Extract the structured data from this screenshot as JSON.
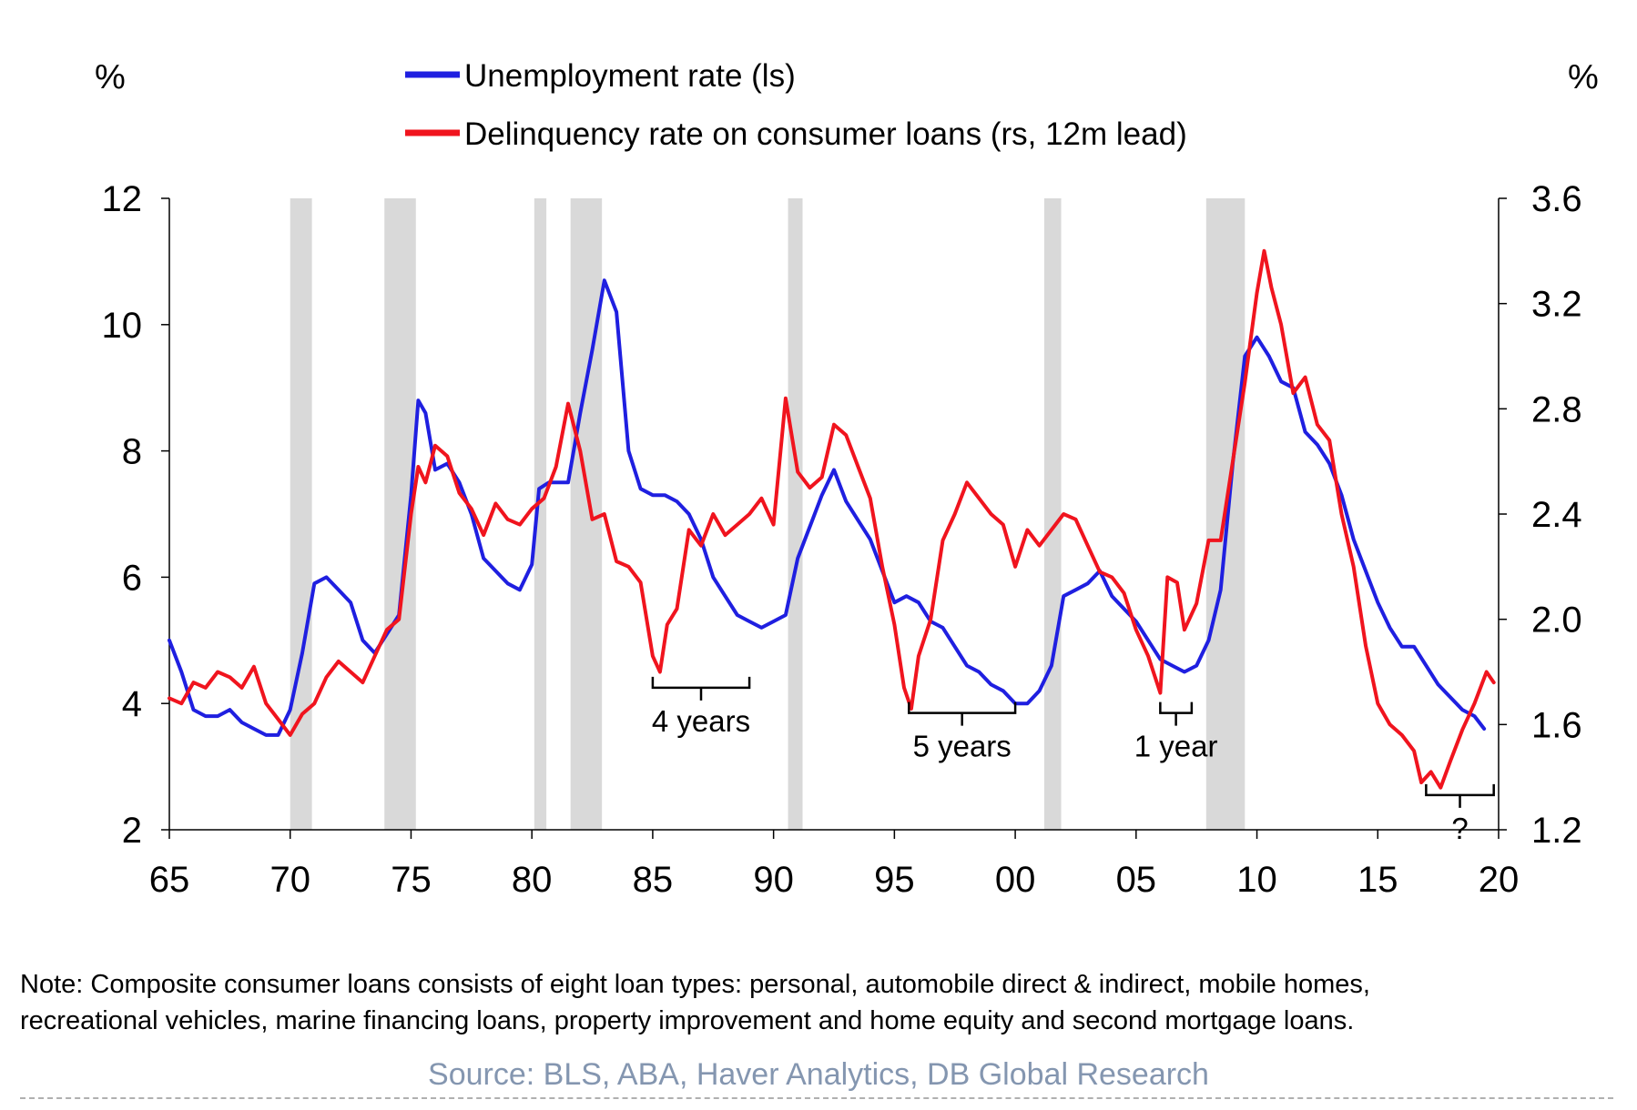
{
  "left_unit": "%",
  "right_unit": "%",
  "note_lines": [
    "Note: Composite consumer loans consists of eight loan types: personal, automobile direct & indirect, mobile homes,",
    "recreational vehicles, marine financing loans, property improvement and home equity and second mortgage loans."
  ],
  "source": "Source: BLS, ABA, Haver Analytics, DB Global Research",
  "chart_data": {
    "type": "line",
    "title": "",
    "xlabel": "",
    "ylabel": "%",
    "y2label": "%",
    "x_range": [
      1965,
      2020
    ],
    "x_ticks": [
      {
        "value": 1965,
        "label": "65"
      },
      {
        "value": 1970,
        "label": "70"
      },
      {
        "value": 1975,
        "label": "75"
      },
      {
        "value": 1980,
        "label": "80"
      },
      {
        "value": 1985,
        "label": "85"
      },
      {
        "value": 1990,
        "label": "90"
      },
      {
        "value": 1995,
        "label": "95"
      },
      {
        "value": 2000,
        "label": "00"
      },
      {
        "value": 2005,
        "label": "05"
      },
      {
        "value": 2010,
        "label": "10"
      },
      {
        "value": 2015,
        "label": "15"
      },
      {
        "value": 2020,
        "label": "20"
      }
    ],
    "ylim": [
      2,
      12
    ],
    "y_ticks": [
      "2",
      "4",
      "6",
      "8",
      "10",
      "12"
    ],
    "y2lim": [
      1.2,
      3.6
    ],
    "y2_ticks": [
      "1.2",
      "1.6",
      "2.0",
      "2.4",
      "2.8",
      "3.2",
      "3.6"
    ],
    "legend_position": "top-center",
    "recessions": [
      [
        1970.0,
        1970.9
      ],
      [
        1973.9,
        1975.2
      ],
      [
        1980.1,
        1980.6
      ],
      [
        1981.6,
        1982.9
      ],
      [
        1990.6,
        1991.2
      ],
      [
        2001.2,
        2001.9
      ],
      [
        2007.9,
        2009.5
      ]
    ],
    "series": [
      {
        "name": "Unemployment rate (ls)",
        "axis": "left",
        "color": "#1f1fe0",
        "points": [
          [
            1965.0,
            5.0
          ],
          [
            1965.5,
            4.5
          ],
          [
            1966.0,
            3.9
          ],
          [
            1966.5,
            3.8
          ],
          [
            1967.0,
            3.8
          ],
          [
            1967.5,
            3.9
          ],
          [
            1968.0,
            3.7
          ],
          [
            1968.5,
            3.6
          ],
          [
            1969.0,
            3.5
          ],
          [
            1969.5,
            3.5
          ],
          [
            1970.0,
            3.9
          ],
          [
            1970.5,
            4.8
          ],
          [
            1971.0,
            5.9
          ],
          [
            1971.5,
            6.0
          ],
          [
            1972.0,
            5.8
          ],
          [
            1972.5,
            5.6
          ],
          [
            1973.0,
            5.0
          ],
          [
            1973.5,
            4.8
          ],
          [
            1974.0,
            5.1
          ],
          [
            1974.5,
            5.4
          ],
          [
            1975.0,
            7.3
          ],
          [
            1975.3,
            8.8
          ],
          [
            1975.6,
            8.6
          ],
          [
            1976.0,
            7.7
          ],
          [
            1976.5,
            7.8
          ],
          [
            1977.0,
            7.5
          ],
          [
            1977.5,
            7.0
          ],
          [
            1978.0,
            6.3
          ],
          [
            1978.5,
            6.1
          ],
          [
            1979.0,
            5.9
          ],
          [
            1979.5,
            5.8
          ],
          [
            1980.0,
            6.2
          ],
          [
            1980.3,
            7.4
          ],
          [
            1980.7,
            7.5
          ],
          [
            1981.0,
            7.5
          ],
          [
            1981.5,
            7.5
          ],
          [
            1982.0,
            8.6
          ],
          [
            1982.5,
            9.6
          ],
          [
            1983.0,
            10.7
          ],
          [
            1983.5,
            10.2
          ],
          [
            1984.0,
            8.0
          ],
          [
            1984.5,
            7.4
          ],
          [
            1985.0,
            7.3
          ],
          [
            1985.5,
            7.3
          ],
          [
            1986.0,
            7.2
          ],
          [
            1986.5,
            7.0
          ],
          [
            1987.0,
            6.6
          ],
          [
            1987.5,
            6.0
          ],
          [
            1988.0,
            5.7
          ],
          [
            1988.5,
            5.4
          ],
          [
            1989.0,
            5.3
          ],
          [
            1989.5,
            5.2
          ],
          [
            1990.0,
            5.3
          ],
          [
            1990.5,
            5.4
          ],
          [
            1991.0,
            6.3
          ],
          [
            1991.5,
            6.8
          ],
          [
            1992.0,
            7.3
          ],
          [
            1992.5,
            7.7
          ],
          [
            1993.0,
            7.2
          ],
          [
            1993.5,
            6.9
          ],
          [
            1994.0,
            6.6
          ],
          [
            1994.5,
            6.1
          ],
          [
            1995.0,
            5.6
          ],
          [
            1995.5,
            5.7
          ],
          [
            1996.0,
            5.6
          ],
          [
            1996.5,
            5.3
          ],
          [
            1997.0,
            5.2
          ],
          [
            1997.5,
            4.9
          ],
          [
            1998.0,
            4.6
          ],
          [
            1998.5,
            4.5
          ],
          [
            1999.0,
            4.3
          ],
          [
            1999.5,
            4.2
          ],
          [
            2000.0,
            4.0
          ],
          [
            2000.5,
            4.0
          ],
          [
            2001.0,
            4.2
          ],
          [
            2001.5,
            4.6
          ],
          [
            2002.0,
            5.7
          ],
          [
            2002.5,
            5.8
          ],
          [
            2003.0,
            5.9
          ],
          [
            2003.5,
            6.1
          ],
          [
            2004.0,
            5.7
          ],
          [
            2004.5,
            5.5
          ],
          [
            2005.0,
            5.3
          ],
          [
            2005.5,
            5.0
          ],
          [
            2006.0,
            4.7
          ],
          [
            2006.5,
            4.6
          ],
          [
            2007.0,
            4.5
          ],
          [
            2007.5,
            4.6
          ],
          [
            2008.0,
            5.0
          ],
          [
            2008.5,
            5.8
          ],
          [
            2009.0,
            7.8
          ],
          [
            2009.5,
            9.5
          ],
          [
            2010.0,
            9.8
          ],
          [
            2010.5,
            9.5
          ],
          [
            2011.0,
            9.1
          ],
          [
            2011.5,
            9.0
          ],
          [
            2012.0,
            8.3
          ],
          [
            2012.5,
            8.1
          ],
          [
            2013.0,
            7.8
          ],
          [
            2013.5,
            7.3
          ],
          [
            2014.0,
            6.6
          ],
          [
            2014.5,
            6.1
          ],
          [
            2015.0,
            5.6
          ],
          [
            2015.5,
            5.2
          ],
          [
            2016.0,
            4.9
          ],
          [
            2016.5,
            4.9
          ],
          [
            2017.0,
            4.6
          ],
          [
            2017.5,
            4.3
          ],
          [
            2018.0,
            4.1
          ],
          [
            2018.5,
            3.9
          ],
          [
            2019.0,
            3.8
          ],
          [
            2019.4,
            3.6
          ]
        ]
      },
      {
        "name": "Delinquency rate on consumer loans (rs, 12m lead)",
        "axis": "right",
        "color": "#f0141e",
        "points": [
          [
            1965.0,
            1.7
          ],
          [
            1965.5,
            1.68
          ],
          [
            1966.0,
            1.76
          ],
          [
            1966.5,
            1.74
          ],
          [
            1967.0,
            1.8
          ],
          [
            1967.5,
            1.78
          ],
          [
            1968.0,
            1.74
          ],
          [
            1968.5,
            1.82
          ],
          [
            1969.0,
            1.68
          ],
          [
            1969.5,
            1.62
          ],
          [
            1970.0,
            1.56
          ],
          [
            1970.5,
            1.64
          ],
          [
            1971.0,
            1.68
          ],
          [
            1971.5,
            1.78
          ],
          [
            1972.0,
            1.84
          ],
          [
            1972.5,
            1.8
          ],
          [
            1973.0,
            1.76
          ],
          [
            1973.5,
            1.86
          ],
          [
            1974.0,
            1.96
          ],
          [
            1974.5,
            2.0
          ],
          [
            1975.0,
            2.4
          ],
          [
            1975.3,
            2.58
          ],
          [
            1975.6,
            2.52
          ],
          [
            1976.0,
            2.66
          ],
          [
            1976.5,
            2.62
          ],
          [
            1977.0,
            2.48
          ],
          [
            1977.5,
            2.42
          ],
          [
            1978.0,
            2.32
          ],
          [
            1978.5,
            2.44
          ],
          [
            1979.0,
            2.38
          ],
          [
            1979.5,
            2.36
          ],
          [
            1980.0,
            2.42
          ],
          [
            1980.5,
            2.46
          ],
          [
            1981.0,
            2.58
          ],
          [
            1981.5,
            2.82
          ],
          [
            1982.0,
            2.64
          ],
          [
            1982.5,
            2.38
          ],
          [
            1983.0,
            2.4
          ],
          [
            1983.5,
            2.22
          ],
          [
            1984.0,
            2.2
          ],
          [
            1984.5,
            2.14
          ],
          [
            1985.0,
            1.86
          ],
          [
            1985.3,
            1.8
          ],
          [
            1985.6,
            1.98
          ],
          [
            1986.0,
            2.04
          ],
          [
            1986.5,
            2.34
          ],
          [
            1987.0,
            2.28
          ],
          [
            1987.5,
            2.4
          ],
          [
            1988.0,
            2.32
          ],
          [
            1988.5,
            2.36
          ],
          [
            1989.0,
            2.4
          ],
          [
            1989.5,
            2.46
          ],
          [
            1990.0,
            2.36
          ],
          [
            1990.5,
            2.84
          ],
          [
            1991.0,
            2.56
          ],
          [
            1991.5,
            2.5
          ],
          [
            1992.0,
            2.54
          ],
          [
            1992.5,
            2.74
          ],
          [
            1993.0,
            2.7
          ],
          [
            1993.5,
            2.58
          ],
          [
            1994.0,
            2.46
          ],
          [
            1994.5,
            2.2
          ],
          [
            1995.0,
            1.98
          ],
          [
            1995.4,
            1.74
          ],
          [
            1995.7,
            1.66
          ],
          [
            1996.0,
            1.86
          ],
          [
            1996.5,
            2.0
          ],
          [
            1997.0,
            2.3
          ],
          [
            1997.5,
            2.4
          ],
          [
            1998.0,
            2.52
          ],
          [
            1998.5,
            2.46
          ],
          [
            1999.0,
            2.4
          ],
          [
            1999.5,
            2.36
          ],
          [
            2000.0,
            2.2
          ],
          [
            2000.5,
            2.34
          ],
          [
            2001.0,
            2.28
          ],
          [
            2001.5,
            2.34
          ],
          [
            2002.0,
            2.4
          ],
          [
            2002.5,
            2.38
          ],
          [
            2003.0,
            2.28
          ],
          [
            2003.5,
            2.18
          ],
          [
            2004.0,
            2.16
          ],
          [
            2004.5,
            2.1
          ],
          [
            2005.0,
            1.96
          ],
          [
            2005.5,
            1.86
          ],
          [
            2006.0,
            1.72
          ],
          [
            2006.3,
            2.16
          ],
          [
            2006.7,
            2.14
          ],
          [
            2007.0,
            1.96
          ],
          [
            2007.5,
            2.06
          ],
          [
            2008.0,
            2.3
          ],
          [
            2008.5,
            2.3
          ],
          [
            2009.0,
            2.6
          ],
          [
            2009.5,
            2.9
          ],
          [
            2010.0,
            3.24
          ],
          [
            2010.3,
            3.4
          ],
          [
            2010.6,
            3.26
          ],
          [
            2011.0,
            3.12
          ],
          [
            2011.5,
            2.86
          ],
          [
            2012.0,
            2.92
          ],
          [
            2012.5,
            2.74
          ],
          [
            2013.0,
            2.68
          ],
          [
            2013.5,
            2.4
          ],
          [
            2014.0,
            2.2
          ],
          [
            2014.5,
            1.9
          ],
          [
            2015.0,
            1.68
          ],
          [
            2015.5,
            1.6
          ],
          [
            2016.0,
            1.56
          ],
          [
            2016.5,
            1.5
          ],
          [
            2016.8,
            1.38
          ],
          [
            2017.2,
            1.42
          ],
          [
            2017.6,
            1.36
          ],
          [
            2018.0,
            1.46
          ],
          [
            2018.5,
            1.58
          ],
          [
            2019.0,
            1.68
          ],
          [
            2019.5,
            1.8
          ],
          [
            2019.8,
            1.76
          ]
        ]
      }
    ],
    "annotations": [
      {
        "text": "4 years",
        "from": 1985.0,
        "to": 1989.0,
        "y": 4.25
      },
      {
        "text": "5 years",
        "from": 1995.6,
        "to": 2000.0,
        "y": 3.85
      },
      {
        "text": "1 year",
        "from": 2006.0,
        "to": 2007.3,
        "y": 3.85
      },
      {
        "text": "?",
        "from": 2017.0,
        "to": 2019.8,
        "y": 2.55
      }
    ]
  }
}
